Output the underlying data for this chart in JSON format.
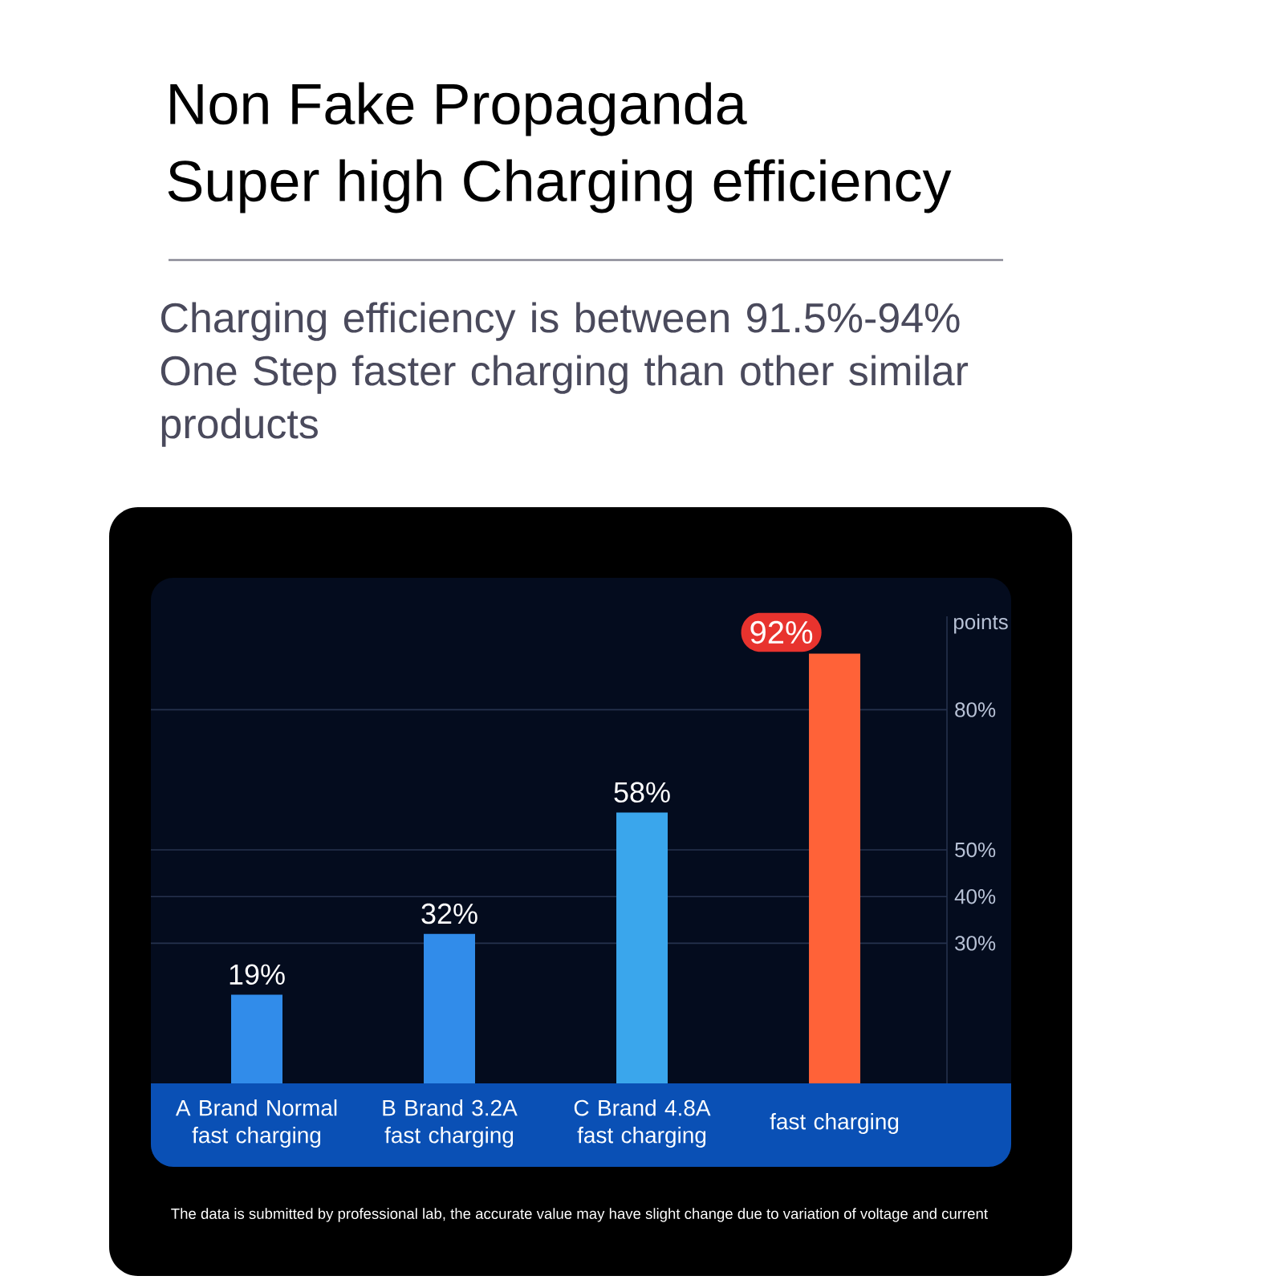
{
  "chart_data": {
    "type": "bar",
    "title": "Non Fake Propaganda",
    "subtitle": "Super high Charging efficiency",
    "ylabel": "points",
    "categories": [
      "A Brand Normal fast charging",
      "B Brand 3.2A fast charging",
      "C Brand 4.8A fast charging",
      "fast charging"
    ],
    "values": [
      19,
      32,
      58,
      92
    ],
    "colors": [
      "#318cea",
      "#318cea",
      "#3aa6ec",
      "#ff6238"
    ],
    "value_labels": [
      "19%",
      "32%",
      "58%",
      "92%"
    ],
    "ylim": [
      0,
      100
    ],
    "yticks": [
      {
        "value": 30,
        "label": "30%"
      },
      {
        "value": 40,
        "label": "40%"
      },
      {
        "value": 50,
        "label": "50%"
      },
      {
        "value": 80,
        "label": "80%"
      }
    ],
    "grid": "y",
    "annotations": [
      "Charging efficiency is between 91.5%-94%",
      "One Step faster charging than other similar products",
      "The data is submitted by professional lab, the accurate value may have slight change due to variation of voltage and current"
    ]
  }
}
